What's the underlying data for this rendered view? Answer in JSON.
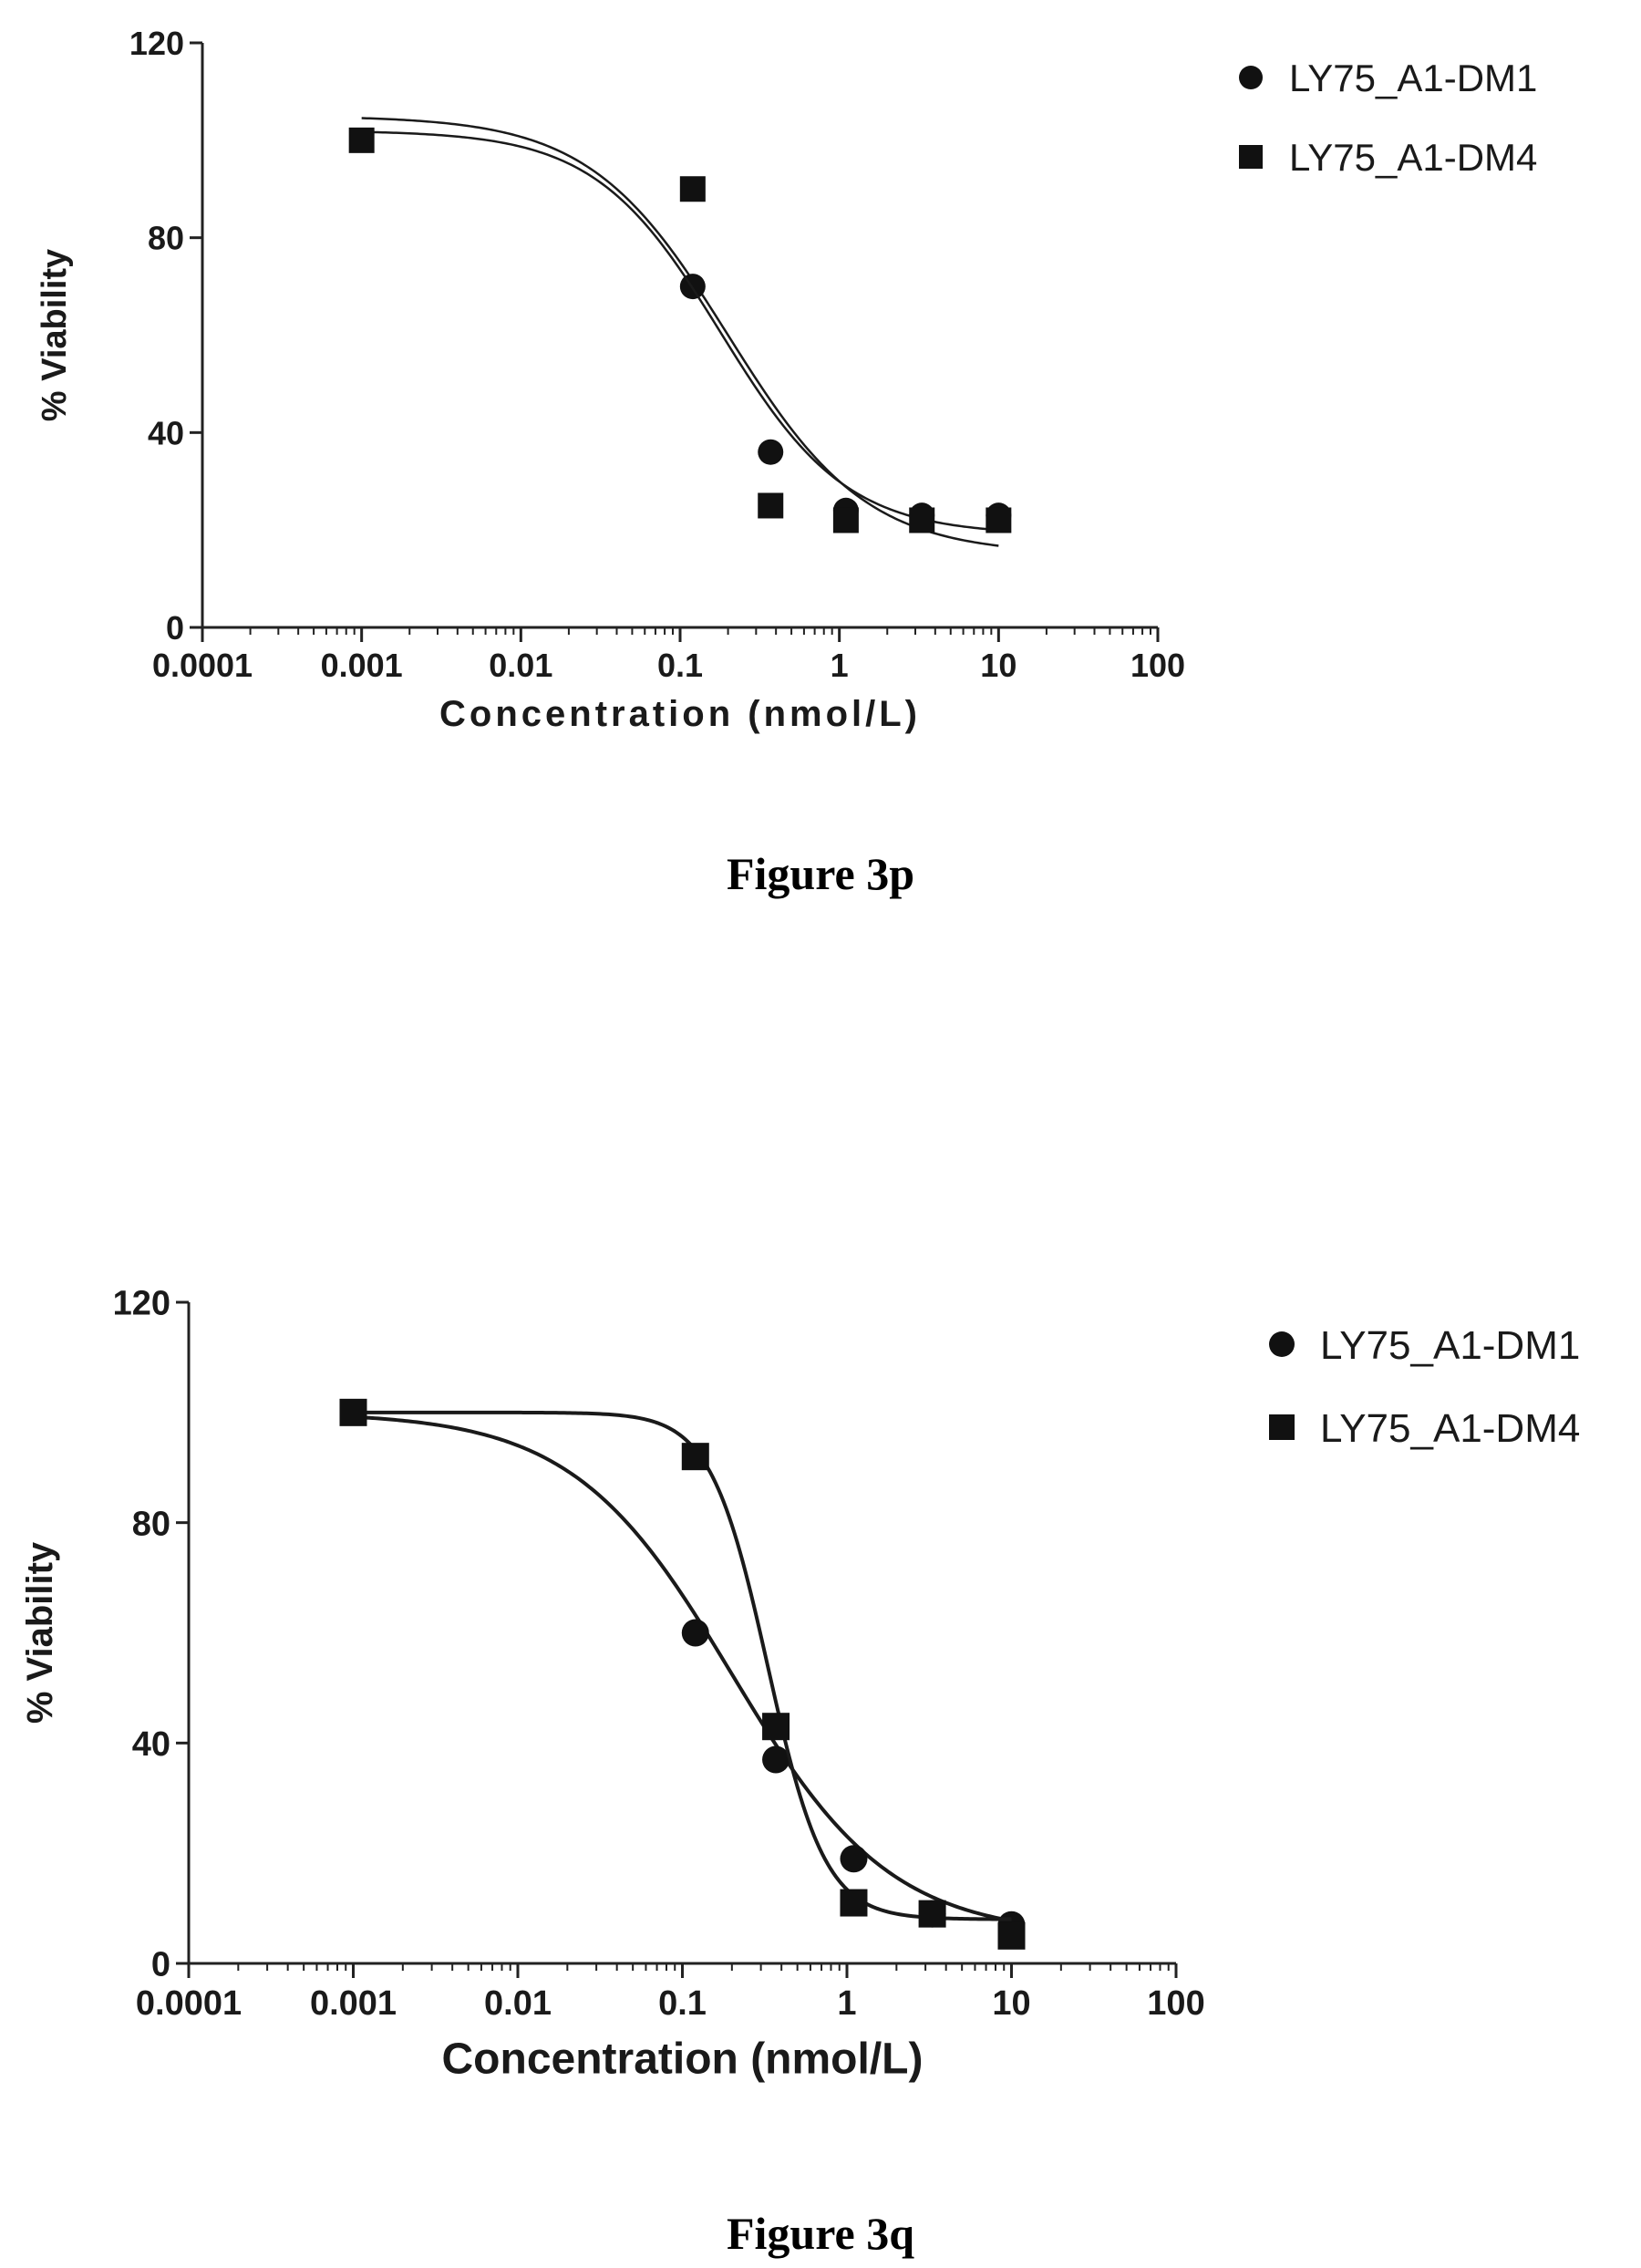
{
  "chart_data": [
    {
      "type": "scatter",
      "caption": "Figure 3p",
      "xlabel": "Concentration (nmol/L)",
      "ylabel": "% Viability",
      "xscale": "log",
      "xlim": [
        0.0001,
        100
      ],
      "ylim": [
        0,
        120
      ],
      "x_ticks": [
        "0.0001",
        "0.001",
        "0.01",
        "0.1",
        "1",
        "10",
        "100"
      ],
      "y_ticks": [
        "0",
        "40",
        "80",
        "120"
      ],
      "legend_position": "top-right",
      "series": [
        {
          "name": "LY75_A1-DM1",
          "marker": "circle",
          "x": [
            0.12,
            0.37,
            1.1,
            3.3,
            10
          ],
          "y": [
            70,
            36,
            24,
            23,
            23
          ],
          "fit": {
            "top": 105,
            "bottom": 15,
            "ec50": 0.2,
            "hill": 1.0
          }
        },
        {
          "name": "LY75_A1-DM4",
          "marker": "square",
          "x": [
            0.001,
            0.12,
            0.37,
            1.1,
            3.3,
            10
          ],
          "y": [
            100,
            90,
            25,
            22,
            22,
            22
          ],
          "fit": {
            "top": 102,
            "bottom": 19,
            "ec50": 0.18,
            "hill": 1.1
          }
        }
      ]
    },
    {
      "type": "scatter",
      "caption": "Figure 3q",
      "xlabel": "Concentration (nmol/L)",
      "ylabel": "% Viability",
      "xscale": "log",
      "xlim": [
        0.0001,
        100
      ],
      "ylim": [
        0,
        120
      ],
      "x_ticks": [
        "0.0001",
        "0.001",
        "0.01",
        "0.1",
        "1",
        "10",
        "100"
      ],
      "y_ticks": [
        "0",
        "40",
        "80",
        "120"
      ],
      "legend_position": "top-right",
      "series": [
        {
          "name": "LY75_A1-DM1",
          "marker": "circle",
          "x": [
            0.12,
            0.37,
            1.1,
            3.3,
            10
          ],
          "y": [
            60,
            37,
            19,
            9,
            7
          ],
          "fit": {
            "top": 100,
            "bottom": 5,
            "ec50": 0.2,
            "hill": 0.9
          }
        },
        {
          "name": "LY75_A1-DM4",
          "marker": "square",
          "x": [
            0.001,
            0.12,
            0.37,
            1.1,
            3.3,
            10
          ],
          "y": [
            100,
            92,
            43,
            11,
            9,
            5
          ],
          "fit": {
            "top": 100,
            "bottom": 8,
            "ec50": 0.33,
            "hill": 2.5
          }
        }
      ]
    }
  ]
}
